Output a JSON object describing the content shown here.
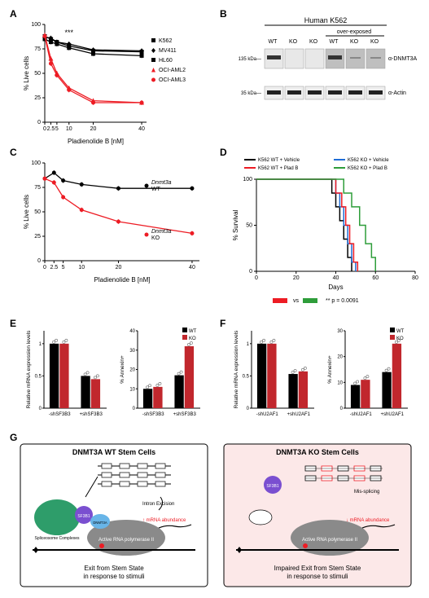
{
  "panelA": {
    "label": "A",
    "type": "line",
    "x": [
      0,
      2.5,
      5,
      10,
      20,
      40
    ],
    "xlabel": "Pladienolide B [nM]",
    "ylabel": "% Live cells",
    "ylim": [
      0,
      100
    ],
    "ytick_step": 25,
    "xlim": [
      0,
      42
    ],
    "series": [
      {
        "name": "K562",
        "color": "#000000",
        "marker": "square",
        "values": [
          88,
          85,
          82,
          78,
          73,
          72
        ]
      },
      {
        "name": "MV411",
        "color": "#000000",
        "marker": "diamond",
        "values": [
          87,
          86,
          82,
          80,
          74,
          73
        ]
      },
      {
        "name": "HL60",
        "color": "#000000",
        "marker": "square-filled",
        "values": [
          85,
          82,
          80,
          76,
          70,
          68
        ]
      },
      {
        "name": "OCI-AML2",
        "color": "#ed1c24",
        "marker": "triangle",
        "values": [
          89,
          65,
          50,
          35,
          22,
          20
        ]
      },
      {
        "name": "OCI-AML3",
        "color": "#ed1c24",
        "marker": "circle",
        "values": [
          88,
          60,
          48,
          33,
          20,
          20
        ]
      }
    ],
    "sig": "***",
    "sig_x": 10
  },
  "panelB": {
    "label": "B",
    "title": "Human K562",
    "columns": [
      "WT",
      "KO",
      "KO",
      "WT",
      "KO",
      "KO"
    ],
    "overexposed_label": "over-exposed",
    "antibodies": [
      "α-DNMT3A",
      "α-Actin"
    ],
    "markers": [
      "135 kDa—",
      "35 kDa—"
    ]
  },
  "panelC": {
    "label": "C",
    "type": "line",
    "x": [
      0,
      2.5,
      5,
      10,
      20,
      40
    ],
    "xlabel": "Pladienolide B [nM]",
    "ylabel": "% Live cells",
    "ylim": [
      0,
      100
    ],
    "ytick_step": 25,
    "xlim": [
      0,
      42
    ],
    "series": [
      {
        "name": "Dnmt3a WT",
        "color": "#000000",
        "marker": "circle",
        "values": [
          84,
          90,
          82,
          78,
          74,
          74
        ]
      },
      {
        "name": "Dnmt3a KO",
        "color": "#ed1c24",
        "marker": "circle",
        "values": [
          84,
          80,
          65,
          52,
          40,
          28
        ]
      }
    ]
  },
  "panelD": {
    "label": "D",
    "type": "survival",
    "xlabel": "Days",
    "ylabel": "% Survival",
    "xlim": [
      0,
      80
    ],
    "xtick_step": 20,
    "ylim": [
      0,
      100
    ],
    "ytick_step": 50,
    "legend": [
      {
        "name": "K562 WT + Vehicle",
        "color": "#000000"
      },
      {
        "name": "K562 KO + Vehicle",
        "color": "#1f6dd6"
      },
      {
        "name": "K562 WT + Plad B",
        "color": "#ed1c24"
      },
      {
        "name": "K562 KO + Plad B",
        "color": "#2e9d3a"
      }
    ],
    "stat": "** p = 0.0091",
    "stat_compare": [
      "#ed1c24",
      "#2e9d3a"
    ]
  },
  "panelE": {
    "label": "E",
    "left": {
      "type": "bar",
      "ylabel": "Relative mRNA expression levels",
      "categories": [
        "-shSF3B3",
        "+shSF3B3"
      ],
      "groups": [
        {
          "name": "WT",
          "color": "#000000",
          "values": [
            1.0,
            0.5
          ]
        },
        {
          "name": "KO",
          "color": "#c1272d",
          "values": [
            1.0,
            0.45
          ]
        }
      ],
      "ylim": [
        0,
        1.2
      ],
      "ytick_step": 0.5
    },
    "right": {
      "type": "bar",
      "ylabel": "% Annexin+",
      "categories": [
        "-shSF3B3",
        "+shSF3B3"
      ],
      "groups": [
        {
          "name": "WT",
          "color": "#000000",
          "values": [
            10,
            17
          ]
        },
        {
          "name": "KO",
          "color": "#c1272d",
          "values": [
            11,
            32
          ]
        }
      ],
      "ylim": [
        0,
        40
      ],
      "ytick_step": 10
    }
  },
  "panelF": {
    "label": "F",
    "left": {
      "type": "bar",
      "ylabel": "Relative mRNA expression levels",
      "categories": [
        "-shU2AF1",
        "+shU2AF1"
      ],
      "groups": [
        {
          "name": "WT",
          "color": "#000000",
          "values": [
            1.0,
            0.53
          ]
        },
        {
          "name": "KO",
          "color": "#c1272d",
          "values": [
            1.0,
            0.57
          ]
        }
      ],
      "ylim": [
        0,
        1.2
      ],
      "ytick_step": 0.5
    },
    "right": {
      "type": "bar",
      "ylabel": "% Annexin+",
      "categories": [
        "-shU2AF1",
        "+shU2AF1"
      ],
      "groups": [
        {
          "name": "WT",
          "color": "#000000",
          "values": [
            9,
            14
          ]
        },
        {
          "name": "KO",
          "color": "#c1272d",
          "values": [
            11,
            25
          ]
        }
      ],
      "ylim": [
        0,
        30
      ],
      "ytick_step": 10
    }
  },
  "panelG": {
    "label": "G",
    "left": {
      "title": "DNMT3A WT Stem Cells",
      "caption": "Exit from Stem State\nin response to stimuli",
      "bg": "#ffffff",
      "border": "#000000",
      "elements": {
        "spliceosome": "Spliceosome Complexes",
        "dnmt3a": "DNMT3A",
        "sf3b1": "SF3B1",
        "rnapol": "Active RNA polymerase II",
        "intron": "Intron Excision",
        "mrna": "mRNA abundance",
        "mrna_arrow": "up"
      }
    },
    "right": {
      "title": "DNMT3A KO Stem Cells",
      "caption": "Impaired Exit from Stem State\nin response to stimuli",
      "bg": "#fce8e8",
      "border": "#000000",
      "elements": {
        "sf3b1": "SF3B1",
        "rnapol": "Active RNA polymerase II",
        "missplice": "Mis-splicing",
        "mrna": "mRNA abundance",
        "mrna_arrow": "down"
      }
    }
  }
}
